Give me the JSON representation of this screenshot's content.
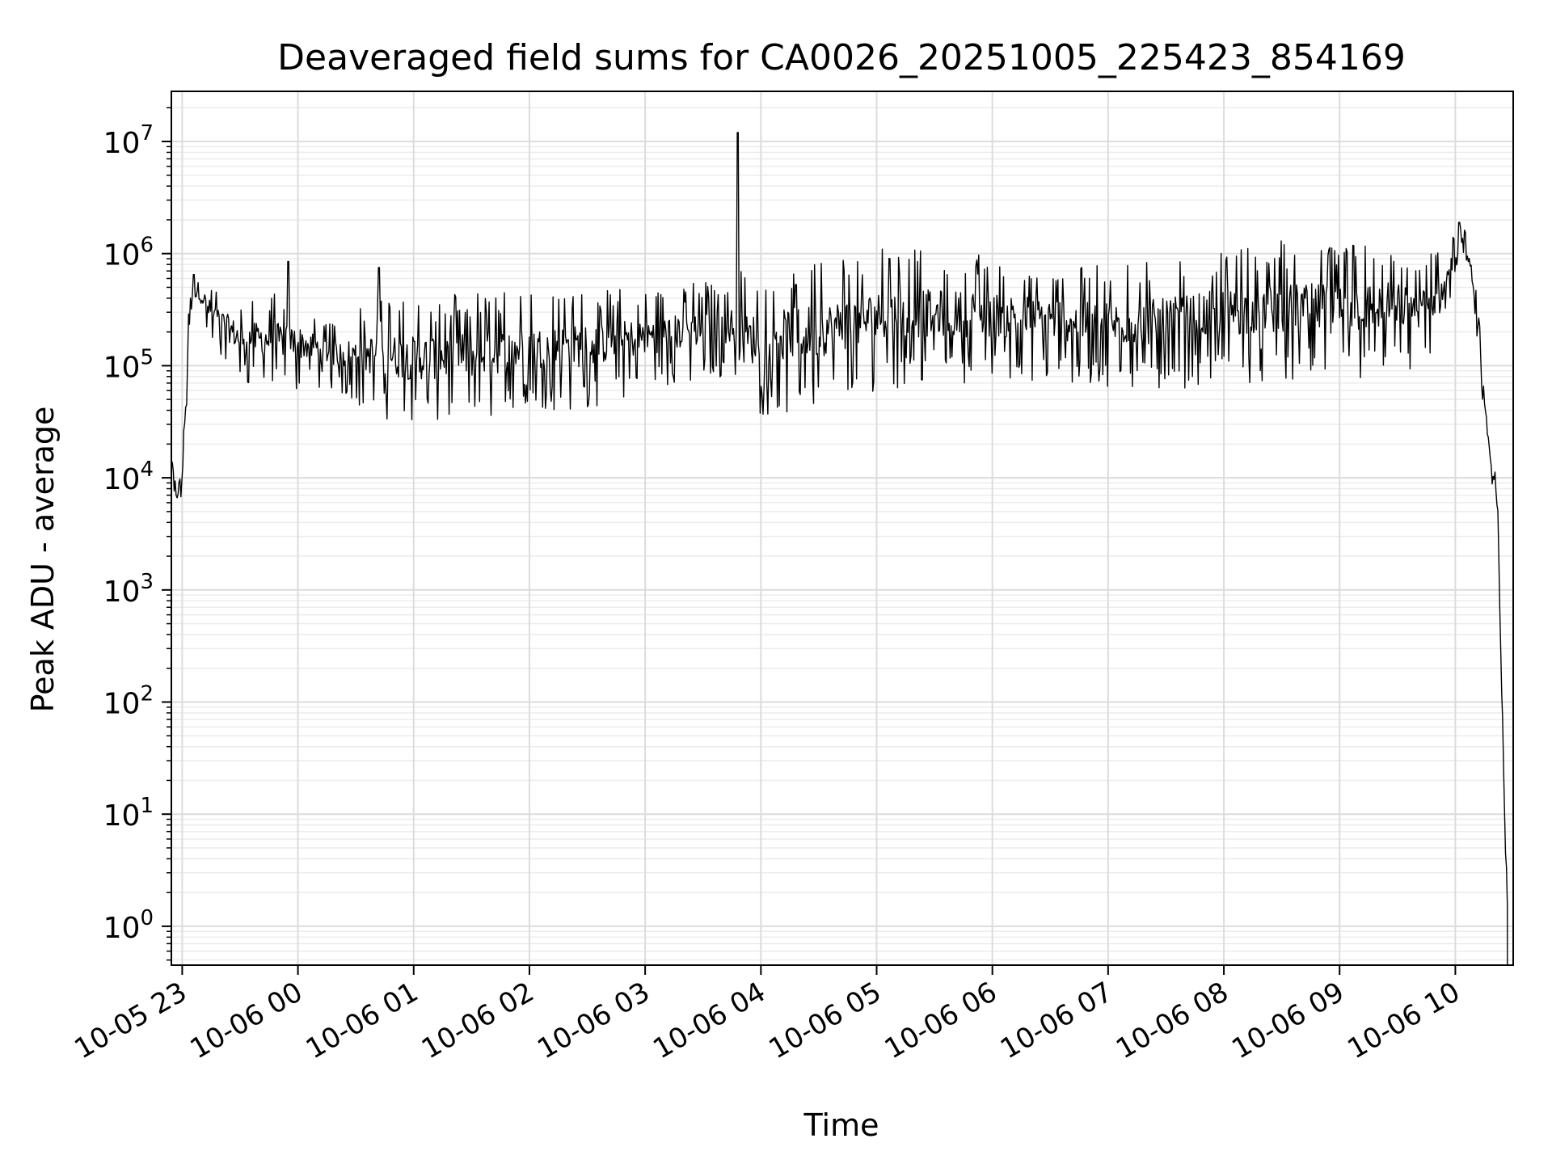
{
  "chart_data": {
    "type": "line",
    "title": "Deaveraged field sums for CA0026_20251005_225423_854169",
    "xlabel": "Time",
    "ylabel": "Peak ADU - average",
    "yscale": "log",
    "ylim": [
      0.45,
      28000000
    ],
    "xlim": [
      "2025-10-05T22:54:23",
      "2025-10-06T10:30:00"
    ],
    "grid": true,
    "x_ticks": [
      "10-05 23",
      "10-06 00",
      "10-06 01",
      "10-06 02",
      "10-06 03",
      "10-06 04",
      "10-06 05",
      "10-06 06",
      "10-06 07",
      "10-06 08",
      "10-06 09",
      "10-06 10"
    ],
    "y_ticks": [
      {
        "base": "10",
        "exp": "0",
        "value": 1
      },
      {
        "base": "10",
        "exp": "1",
        "value": 10
      },
      {
        "base": "10",
        "exp": "2",
        "value": 100
      },
      {
        "base": "10",
        "exp": "3",
        "value": 1000
      },
      {
        "base": "10",
        "exp": "4",
        "value": 10000
      },
      {
        "base": "10",
        "exp": "5",
        "value": 100000
      },
      {
        "base": "10",
        "exp": "6",
        "value": 1000000
      },
      {
        "base": "10",
        "exp": "7",
        "value": 10000000
      }
    ],
    "series": [
      {
        "color": "#000000",
        "envelope": [
          {
            "t": "2025-10-05T22:54:23",
            "low": 12000,
            "high": 17000
          },
          {
            "t": "2025-10-05T22:57:00",
            "low": 4000,
            "high": 12000
          },
          {
            "t": "2025-10-05T23:00:00",
            "low": 7000,
            "high": 14000
          },
          {
            "t": "2025-10-05T23:04:00",
            "low": 150000,
            "high": 650000
          },
          {
            "t": "2025-10-05T23:08:00",
            "low": 300000,
            "high": 750000
          },
          {
            "t": "2025-10-05T23:15:00",
            "low": 150000,
            "high": 550000
          },
          {
            "t": "2025-10-05T23:30:00",
            "low": 70000,
            "high": 400000
          },
          {
            "t": "2025-10-05T23:45:00",
            "low": 60000,
            "high": 450000
          },
          {
            "t": "2025-10-06T00:00:00",
            "low": 60000,
            "high": 400000
          },
          {
            "t": "2025-10-06T00:20:00",
            "low": 60000,
            "high": 250000
          },
          {
            "t": "2025-10-06T00:40:00",
            "low": 35000,
            "high": 400000
          },
          {
            "t": "2025-10-06T01:00:00",
            "low": 30000,
            "high": 400000
          },
          {
            "t": "2025-10-06T01:30:00",
            "low": 30000,
            "high": 450000
          },
          {
            "t": "2025-10-06T02:00:00",
            "low": 40000,
            "high": 450000
          },
          {
            "t": "2025-10-06T02:30:00",
            "low": 40000,
            "high": 500000
          },
          {
            "t": "2025-10-06T03:00:00",
            "low": 60000,
            "high": 500000
          },
          {
            "t": "2025-10-06T03:45:00",
            "low": 80000,
            "high": 600000
          },
          {
            "t": "2025-10-06T03:50:00",
            "low": 35000,
            "high": 700000
          },
          {
            "t": "2025-10-06T04:30:00",
            "low": 40000,
            "high": 900000
          },
          {
            "t": "2025-10-06T05:00:00",
            "low": 60000,
            "high": 1100000
          },
          {
            "t": "2025-10-06T05:30:00",
            "low": 70000,
            "high": 1100000
          },
          {
            "t": "2025-10-06T06:00:00",
            "low": 70000,
            "high": 1000000
          },
          {
            "t": "2025-10-06T06:30:00",
            "low": 70000,
            "high": 900000
          },
          {
            "t": "2025-10-06T07:00:00",
            "low": 60000,
            "high": 800000
          },
          {
            "t": "2025-10-06T07:30:00",
            "low": 60000,
            "high": 900000
          },
          {
            "t": "2025-10-06T08:00:00",
            "low": 70000,
            "high": 1100000
          },
          {
            "t": "2025-10-06T08:30:00",
            "low": 70000,
            "high": 1300000
          },
          {
            "t": "2025-10-06T09:00:00",
            "low": 70000,
            "high": 1300000
          },
          {
            "t": "2025-10-06T09:30:00",
            "low": 80000,
            "high": 1300000
          },
          {
            "t": "2025-10-06T09:50:00",
            "low": 100000,
            "high": 1000000
          },
          {
            "t": "2025-10-06T10:00:00",
            "low": 600000,
            "high": 1500000
          },
          {
            "t": "2025-10-06T10:05:00",
            "low": 1000000,
            "high": 1800000
          },
          {
            "t": "2025-10-06T10:10:00",
            "low": 300000,
            "high": 600000
          },
          {
            "t": "2025-10-06T10:15:00",
            "low": 15000,
            "high": 100000
          },
          {
            "t": "2025-10-06T10:18:00",
            "low": 12000,
            "high": 18000
          },
          {
            "t": "2025-10-06T10:22:00",
            "low": 3000,
            "high": 9000
          },
          {
            "t": "2025-10-06T10:26:00",
            "low": 2,
            "high": 8
          },
          {
            "t": "2025-10-06T10:27:00",
            "low": 0.4,
            "high": 5
          }
        ],
        "spikes": [
          {
            "t": "2025-10-05T23:06:00",
            "value": 650000
          },
          {
            "t": "2025-10-05T23:55:00",
            "value": 850000
          },
          {
            "t": "2025-10-06T00:42:00",
            "value": 750000
          },
          {
            "t": "2025-10-06T03:48:00",
            "value": 12000000
          },
          {
            "t": "2025-10-06T10:02:00",
            "value": 1900000
          }
        ]
      }
    ]
  }
}
